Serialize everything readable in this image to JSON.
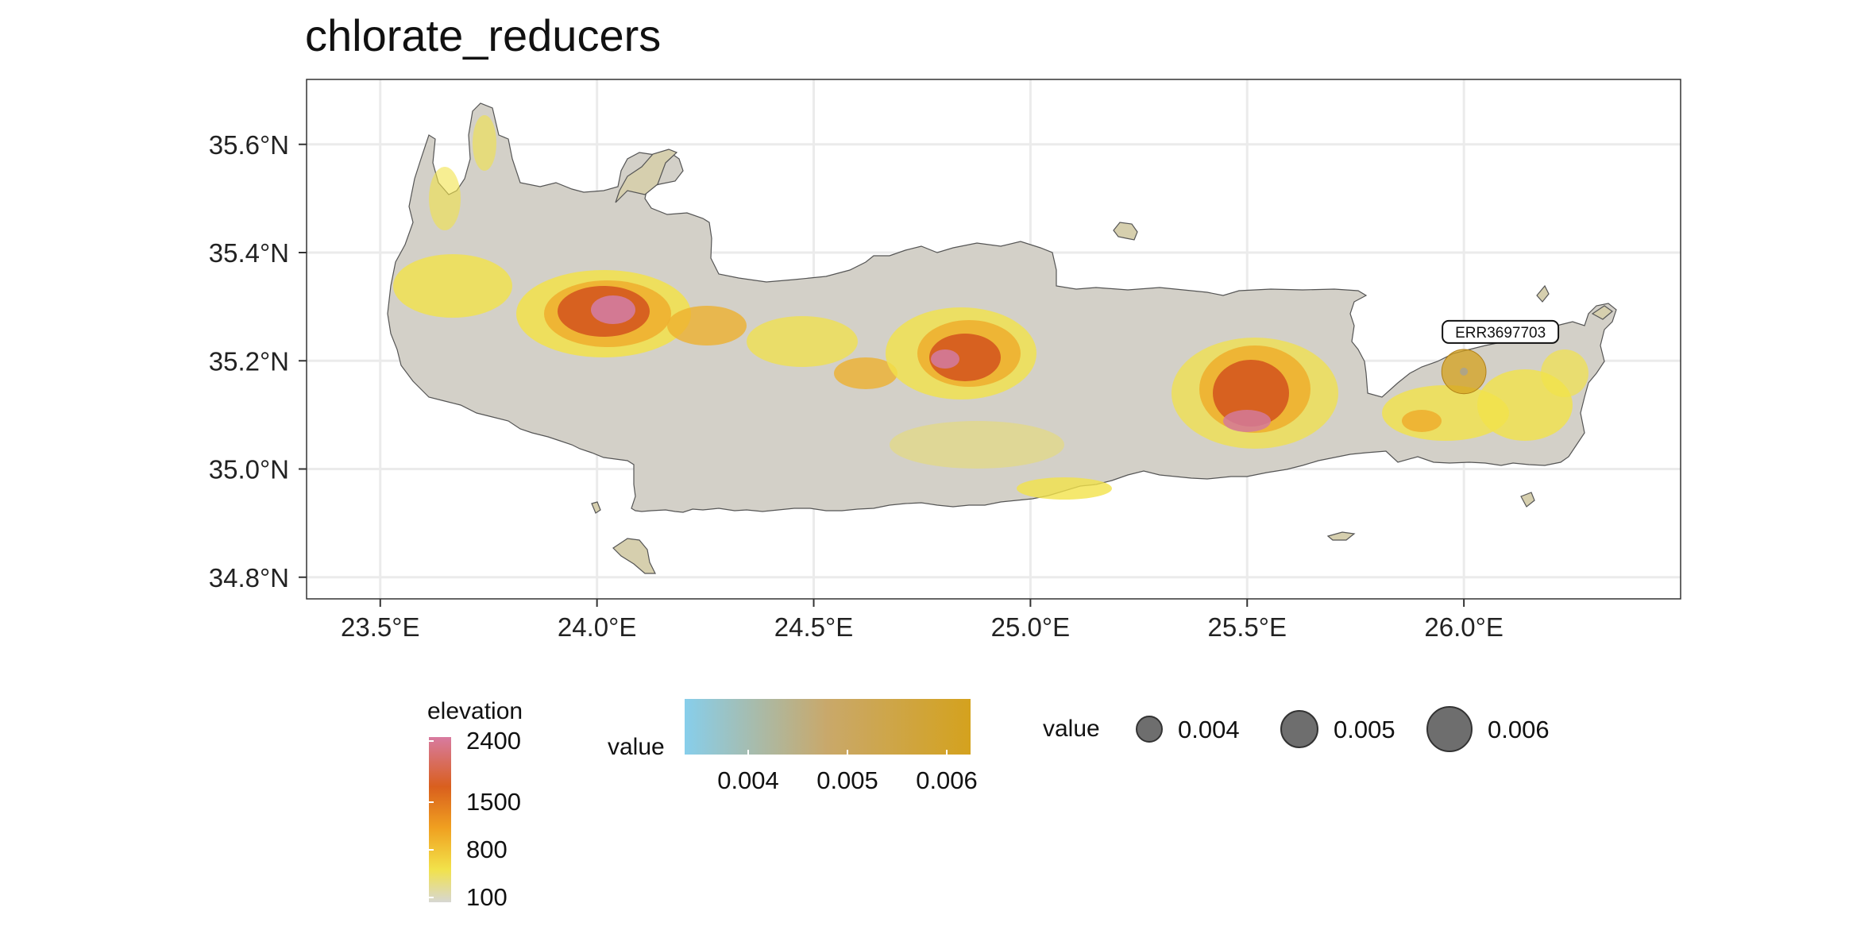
{
  "title": "chlorate_reducers",
  "map": {
    "x_ticks": [
      "23.5°E",
      "24.0°E",
      "24.5°E",
      "25.0°E",
      "25.5°E",
      "26.0°E"
    ],
    "y_ticks": [
      "35.6°N",
      "35.4°N",
      "35.2°N",
      "35.0°N",
      "34.8°N"
    ],
    "lon_range": [
      23.33,
      26.5
    ],
    "lat_range": [
      34.76,
      35.72
    ],
    "grid": true,
    "sample": {
      "label": "ERR3697703",
      "lon": 26.0,
      "lat": 35.18,
      "value": 0.0058
    }
  },
  "legend": {
    "elevation": {
      "title": "elevation",
      "labels": [
        "2400",
        "1500",
        "800",
        "100"
      ],
      "colors": [
        "#d87ba0",
        "#d95f1e",
        "#f0a020",
        "#f2e24a",
        "#d7d7d2"
      ]
    },
    "value_color": {
      "title": "value",
      "labels": [
        "0.004",
        "0.005",
        "0.006"
      ],
      "colors": [
        "#87ceeb",
        "#c9a24a",
        "#d4a21e"
      ]
    },
    "value_size": {
      "title": "value",
      "labels": [
        "0.004",
        "0.005",
        "0.006"
      ]
    }
  },
  "colors": {
    "land_base": "#d3d0c8",
    "lowland": "#f0e050",
    "mid": "#eeb030",
    "high": "#d55d20",
    "peak": "#d37a9a",
    "sample_point": "#d4a21e"
  }
}
